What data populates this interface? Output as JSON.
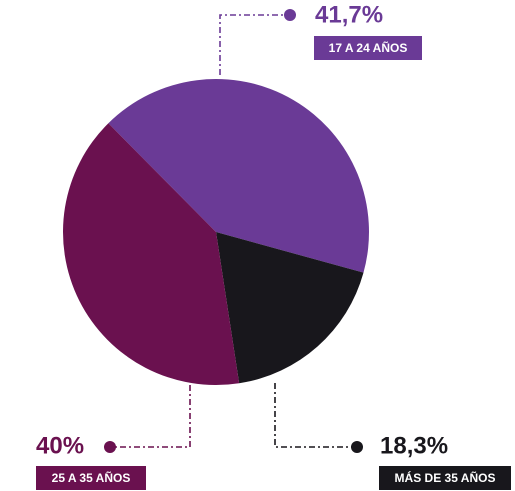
{
  "chart_data": {
    "type": "pie",
    "categories": [
      "17 A 24 AÑOS",
      "MÁS DE 35 AÑOS",
      "25 A 35 AÑOS"
    ],
    "values": [
      41.7,
      18.3,
      40
    ],
    "value_labels": [
      "41,7%",
      "18,3%",
      "40%"
    ],
    "colors": [
      "#6a3a96",
      "#18171c",
      "#6a114f"
    ]
  }
}
